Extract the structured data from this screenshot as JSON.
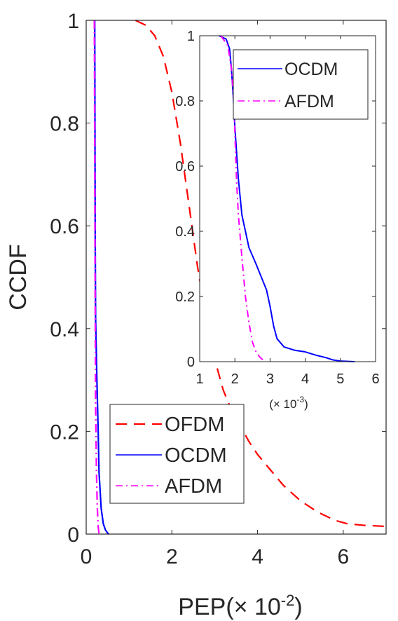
{
  "chart_data": [
    {
      "type": "line",
      "xlabel": "PEP",
      "xlabel_unit": "(× 10",
      "xlabel_unit_exp": "-2",
      "xlabel_unit_close": ")",
      "ylabel": "CCDF",
      "xlim": [
        0,
        7
      ],
      "ylim": [
        0,
        1
      ],
      "xticks": [
        0,
        2,
        4,
        6
      ],
      "xtick_labels": [
        "0",
        "2",
        "4",
        "6"
      ],
      "yticks": [
        0,
        0.2,
        0.4,
        0.6,
        0.8,
        1
      ],
      "ytick_labels": [
        "0",
        "0.2",
        "0.4",
        "0.6",
        "0.8",
        "1"
      ],
      "grid": false,
      "legend_position": "bottom-left",
      "series": [
        {
          "name": "OFDM",
          "color": "#ff0000",
          "style": "dashed",
          "x": [
            1.15,
            1.4,
            1.6,
            1.8,
            2.0,
            2.2,
            2.4,
            2.6,
            2.8,
            3.0,
            3.2,
            3.4,
            3.6,
            3.8,
            4.0,
            4.3,
            4.6,
            5.0,
            5.4,
            5.8,
            6.1,
            6.5,
            7.0
          ],
          "y": [
            1.0,
            0.99,
            0.97,
            0.93,
            0.86,
            0.76,
            0.64,
            0.52,
            0.42,
            0.34,
            0.28,
            0.24,
            0.21,
            0.18,
            0.155,
            0.125,
            0.095,
            0.065,
            0.043,
            0.027,
            0.02,
            0.017,
            0.015
          ]
        },
        {
          "name": "OCDM",
          "color": "#0000ff",
          "style": "solid",
          "x": [
            0.2,
            0.205,
            0.21,
            0.22,
            0.25,
            0.28,
            0.3,
            0.35,
            0.4,
            0.45,
            0.5,
            0.53
          ],
          "y": [
            1.0,
            0.8,
            0.6,
            0.42,
            0.3,
            0.2,
            0.12,
            0.05,
            0.02,
            0.008,
            0.002,
            0.0
          ]
        },
        {
          "name": "AFDM",
          "color": "#ff00ff",
          "style": "dashdot",
          "x": [
            0.19,
            0.2,
            0.21,
            0.22,
            0.24,
            0.26,
            0.28,
            0.3
          ],
          "y": [
            1.0,
            0.7,
            0.45,
            0.25,
            0.12,
            0.05,
            0.015,
            0.0
          ]
        }
      ]
    },
    {
      "type": "line",
      "xlim": [
        1,
        6
      ],
      "ylim": [
        0,
        1
      ],
      "xticks": [
        1,
        2,
        3,
        4,
        5,
        6
      ],
      "xtick_labels": [
        "1",
        "2",
        "3",
        "4",
        "5",
        "6"
      ],
      "yticks": [
        0,
        0.2,
        0.4,
        0.6,
        0.8,
        1
      ],
      "ytick_labels": [
        "0",
        "0.2",
        "0.4",
        "0.6",
        "0.8",
        "1"
      ],
      "x_unit": "(× 10",
      "x_unit_exp": "-3",
      "x_unit_close": ")",
      "grid": false,
      "legend_position": "top-right",
      "series": [
        {
          "name": "OCDM",
          "color": "#0000ff",
          "style": "solid",
          "x": [
            1.55,
            1.75,
            1.85,
            1.9,
            1.95,
            2.0,
            2.1,
            2.2,
            2.4,
            2.6,
            2.75,
            2.9,
            3.0,
            3.1,
            3.2,
            3.4,
            3.7,
            4.0,
            4.3,
            4.6,
            4.8,
            5.0,
            5.4
          ],
          "y": [
            1.0,
            0.99,
            0.96,
            0.9,
            0.82,
            0.72,
            0.56,
            0.45,
            0.35,
            0.3,
            0.26,
            0.22,
            0.17,
            0.11,
            0.07,
            0.045,
            0.035,
            0.03,
            0.02,
            0.012,
            0.005,
            0.002,
            0.0
          ]
        },
        {
          "name": "AFDM",
          "color": "#ff00ff",
          "style": "dashdot",
          "x": [
            1.6,
            1.8,
            1.9,
            1.97,
            2.0,
            2.05,
            2.1,
            2.2,
            2.3,
            2.4,
            2.5,
            2.6,
            2.7,
            2.85
          ],
          "y": [
            1.0,
            0.97,
            0.9,
            0.8,
            0.7,
            0.55,
            0.45,
            0.32,
            0.2,
            0.12,
            0.06,
            0.03,
            0.015,
            0.0
          ]
        }
      ]
    }
  ]
}
